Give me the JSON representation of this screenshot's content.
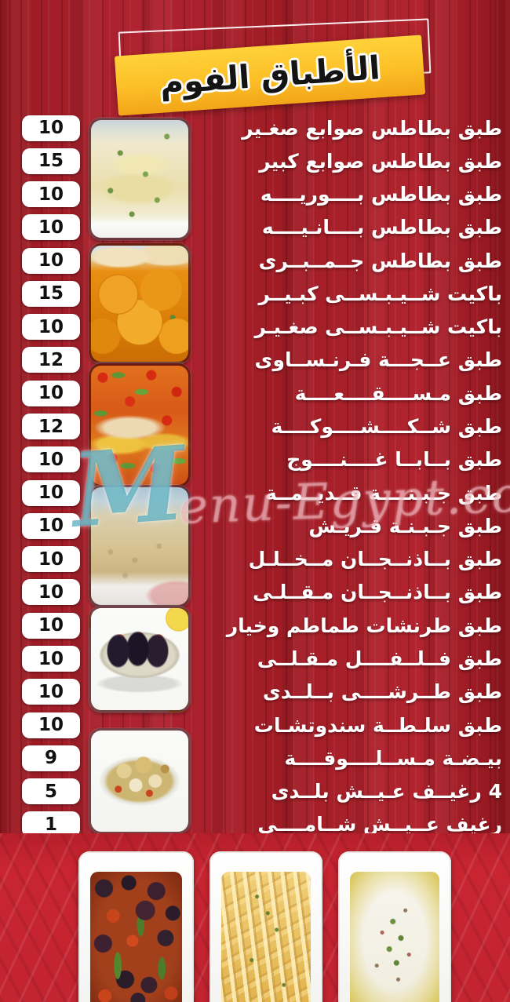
{
  "header": {
    "title": "الأطباق الفوم"
  },
  "watermark": {
    "initial": "M",
    "script": "enu-Egypt.com"
  },
  "menu": {
    "items": [
      {
        "label": "طبق بطاطس صوابع صغـير",
        "price": "10"
      },
      {
        "label": "طبق بطاطس صوابع كبير",
        "price": "15"
      },
      {
        "label": "طبق بطاطس بــــوريــــه",
        "price": "10"
      },
      {
        "label": "طبق بطاطس بــــانـيــــه",
        "price": "10"
      },
      {
        "label": "طبق بطاطس جــمــبــرى",
        "price": "10"
      },
      {
        "label": "باكيت شــيـبـســى كبـيــر",
        "price": "15"
      },
      {
        "label": "باكيت شــيـبـســى صغـيـر",
        "price": "10"
      },
      {
        "label": "طبق عــجـــة فـرنـســاوى",
        "price": "12"
      },
      {
        "label": "طبق مـســــقــــعــــة",
        "price": "10"
      },
      {
        "label": "طبق شــكــــشــــوكــــة",
        "price": "12"
      },
      {
        "label": "طبق بــابــا غــــنــــوج",
        "price": "10"
      },
      {
        "label": "طبق جـبـنــــة قــديــمــة",
        "price": "10"
      },
      {
        "label": "طبق جـبـنـة قـريـش",
        "price": "10"
      },
      {
        "label": "طبق بــاذنــجــان مــخــلـل",
        "price": "10"
      },
      {
        "label": "طبق بــاذنــجــان مـقــلـى",
        "price": "10"
      },
      {
        "label": "طبق طرنشات طماطم وخيار",
        "price": "10"
      },
      {
        "label": "طبق فــلــفــــل مـقـلــى",
        "price": "10"
      },
      {
        "label": "طبق طــرشــــى بــلــدى",
        "price": "10"
      },
      {
        "label": "طبق سلـطــة سندوتشـات",
        "price": "10"
      },
      {
        "label": "بيـضـة مـســلــــوقــــة",
        "price": "9"
      },
      {
        "label": "4 رغيــف عـيــش بلــدى",
        "price": "5"
      },
      {
        "label": "رغيف عــيــش شــامــــى",
        "price": "1"
      }
    ]
  },
  "photos": [
    {
      "name": "mashed-potatoes"
    },
    {
      "name": "fried-potato-slices"
    },
    {
      "name": "shakshuka"
    },
    {
      "name": "beige-dip"
    },
    {
      "name": "pickled-stuffed-eggplant"
    },
    {
      "name": "boiled-vegetable-bowl"
    }
  ],
  "bottom_plates": [
    {
      "name": "eggplant-stew-plate"
    },
    {
      "name": "french-fries-plate"
    },
    {
      "name": "white-cheese-plate"
    }
  ]
}
